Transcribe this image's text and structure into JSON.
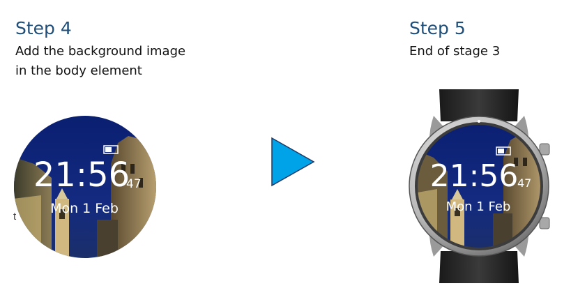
{
  "step4": {
    "title": "Step 4",
    "description": "Add the background image\nin the body element"
  },
  "step5": {
    "title": "Step 5",
    "description": "End of stage 3"
  },
  "stray_text": "t",
  "watch": {
    "time": "21:56",
    "seconds": "47",
    "date": "Mon 1 Feb"
  },
  "arrow_color": "#00a2e8",
  "title_color": "#1f4e79"
}
